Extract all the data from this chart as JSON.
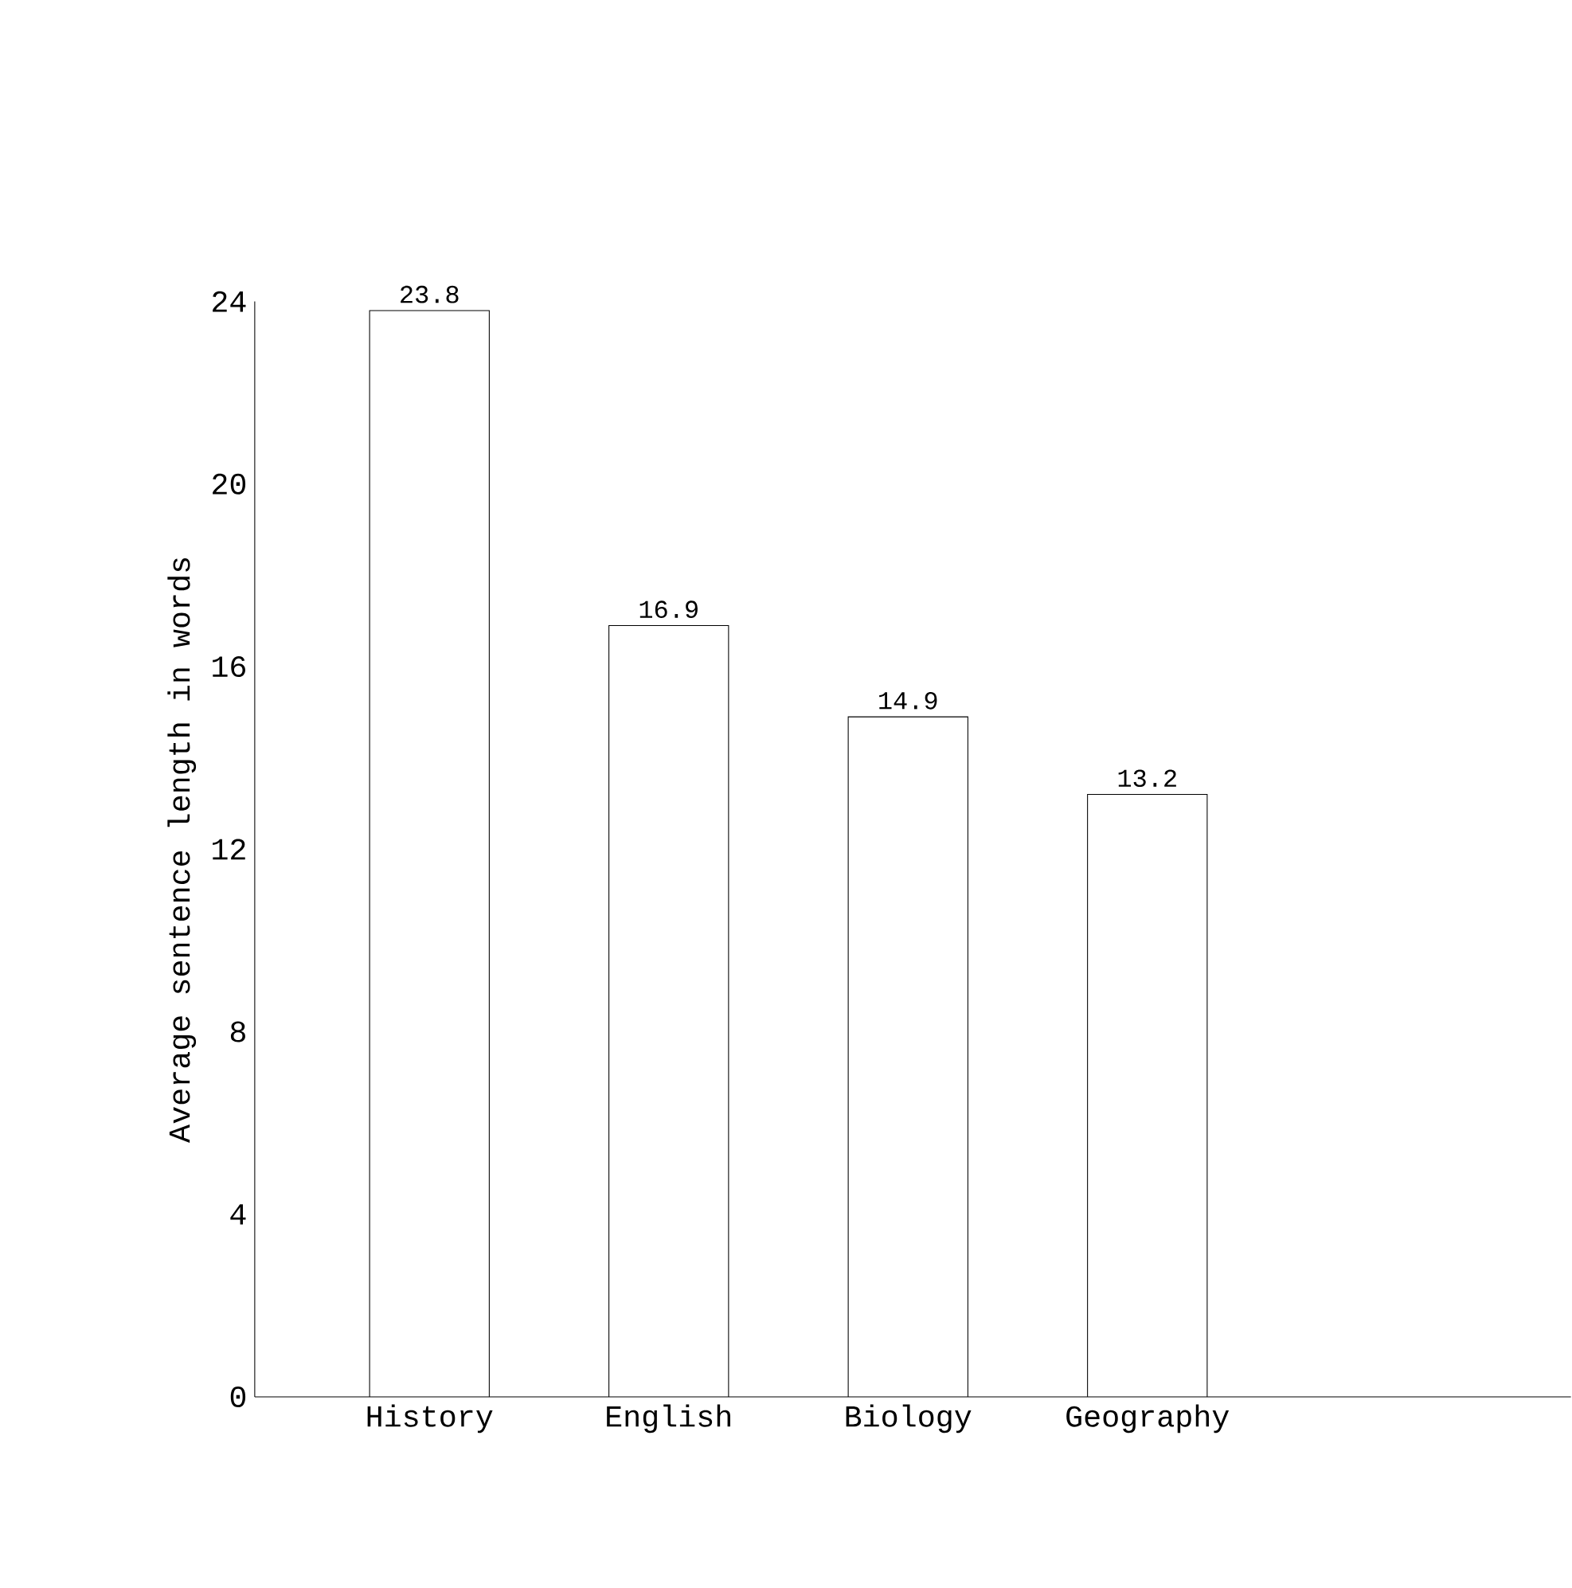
{
  "chart_data": {
    "type": "bar",
    "ylabel": "Average sentence length in words",
    "categories": [
      "History",
      "English",
      "Biology",
      "Geography"
    ],
    "values": [
      23.8,
      16.9,
      14.9,
      13.2
    ],
    "color": "#ffffff",
    "ylim": [
      0,
      24
    ],
    "yticks": [
      0,
      4,
      8,
      12,
      16,
      20,
      24
    ],
    "data_labels": true
  }
}
